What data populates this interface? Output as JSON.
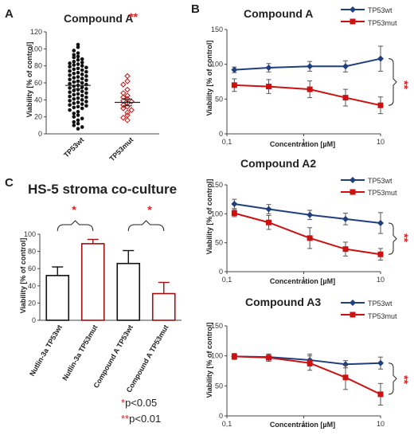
{
  "panels": {
    "A": {
      "label": "A"
    },
    "B": {
      "label": "B"
    },
    "C": {
      "label": "C"
    }
  },
  "significance": {
    "star1": "*",
    "star2": "**"
  },
  "footnotes": {
    "p1_star": "*",
    "p1_text": "p<0.05",
    "p2_star": "**",
    "p2_text": "p<0.01"
  },
  "colors": {
    "wt": "#1f3f7f",
    "mut": "#cc1111",
    "black": "#111111",
    "darkred": "#a01010"
  },
  "chart_data": [
    {
      "id": "A",
      "type": "scatter",
      "title": "Compound  A",
      "significance": "**",
      "ylabel": "Viability [% of control]",
      "categories": [
        "TP53wt",
        "TP53mut"
      ],
      "ylim": [
        0,
        120
      ],
      "yticks": [
        0,
        20,
        40,
        60,
        80,
        100,
        120
      ],
      "means": [
        57,
        37
      ],
      "sem": [
        4,
        4
      ],
      "points": [
        [
          105,
          102,
          98,
          95,
          93,
          91,
          90,
          88,
          87,
          85,
          84,
          83,
          82,
          81,
          80,
          79,
          78,
          77,
          76,
          75,
          74,
          73,
          72,
          71,
          70,
          69,
          68,
          67,
          66,
          65,
          64,
          63,
          62,
          61,
          60,
          59,
          58,
          57,
          56,
          55,
          54,
          53,
          52,
          51,
          50,
          49,
          48,
          47,
          46,
          45,
          44,
          43,
          42,
          41,
          40,
          39,
          38,
          37,
          36,
          35,
          34,
          33,
          32,
          31,
          30,
          28,
          26,
          24,
          22,
          20,
          18,
          16,
          14,
          12,
          10,
          8,
          6
        ],
        [
          68,
          62,
          58,
          52,
          48,
          45,
          43,
          41,
          39,
          38,
          36,
          34,
          32,
          30,
          28,
          25,
          22,
          19,
          16
        ]
      ]
    },
    {
      "id": "B1",
      "type": "line",
      "title": "Compound A",
      "xlabel": "Concentration [µM]",
      "ylabel": "Viability [% of control]",
      "xscale": "log",
      "xlim": [
        0.1,
        10
      ],
      "xticks": [
        0.1,
        1,
        10
      ],
      "xtick_labels": [
        "0,1",
        "1",
        "10"
      ],
      "ylim": [
        0,
        150
      ],
      "yticks": [
        0,
        50,
        100,
        150
      ],
      "x": [
        0.125,
        0.35,
        1.2,
        3.5,
        10
      ],
      "series": [
        {
          "name": "TP53wt",
          "values": [
            92,
            95,
            97,
            97,
            108
          ],
          "err": [
            4,
            6,
            7,
            8,
            18
          ]
        },
        {
          "name": "TP53mut",
          "values": [
            70,
            68,
            64,
            52,
            41
          ],
          "err": [
            9,
            10,
            12,
            12,
            12
          ]
        }
      ],
      "significance": "**"
    },
    {
      "id": "B2",
      "type": "line",
      "title": "Compound A2",
      "xlabel": "Concentration [µM]",
      "ylabel": "Viability [% of control]",
      "xscale": "log",
      "xlim": [
        0.1,
        10
      ],
      "xticks": [
        0.1,
        1,
        10
      ],
      "xtick_labels": [
        "0,1",
        "1",
        "10"
      ],
      "ylim": [
        0,
        150
      ],
      "yticks": [
        0,
        50,
        100,
        150
      ],
      "x": [
        0.125,
        0.35,
        1.2,
        3.5,
        10
      ],
      "series": [
        {
          "name": "TP53wt",
          "values": [
            117,
            108,
            98,
            91,
            84
          ],
          "err": [
            8,
            8,
            8,
            10,
            18
          ]
        },
        {
          "name": "TP53mut",
          "values": [
            101,
            85,
            58,
            39,
            30
          ],
          "err": [
            6,
            12,
            18,
            12,
            10
          ]
        }
      ],
      "significance": "**"
    },
    {
      "id": "B3",
      "type": "line",
      "title": "Compound A3",
      "xlabel": "Concentration [µM]",
      "ylabel": "Viability [% of control]",
      "xscale": "log",
      "xlim": [
        0.1,
        10
      ],
      "xticks": [
        0.1,
        1,
        10
      ],
      "xtick_labels": [
        "0,1",
        "1",
        "10"
      ],
      "ylim": [
        0,
        150
      ],
      "yticks": [
        0,
        50,
        100,
        150
      ],
      "x": [
        0.125,
        0.35,
        1.2,
        3.5,
        10
      ],
      "series": [
        {
          "name": "TP53wt",
          "values": [
            99,
            98,
            93,
            86,
            88
          ],
          "err": [
            4,
            5,
            10,
            6,
            10
          ]
        },
        {
          "name": "TP53mut",
          "values": [
            99,
            97,
            88,
            64,
            36
          ],
          "err": [
            5,
            6,
            12,
            20,
            18
          ]
        }
      ],
      "significance": "**"
    },
    {
      "id": "C",
      "type": "bar",
      "title": "HS-5 stroma co-culture",
      "ylabel": "Viability [% of control]",
      "categories": [
        "Nutlin-3a TP53wt",
        "Nutlin-3a TP53mut",
        "Compound A TP53wt",
        "Compound A TP53mut"
      ],
      "values": [
        52,
        89,
        66,
        31
      ],
      "err": [
        10,
        5,
        15,
        13
      ],
      "ylim": [
        0,
        100
      ],
      "yticks": [
        0,
        20,
        40,
        60,
        80,
        100
      ],
      "significance": [
        "*",
        "*"
      ]
    }
  ]
}
